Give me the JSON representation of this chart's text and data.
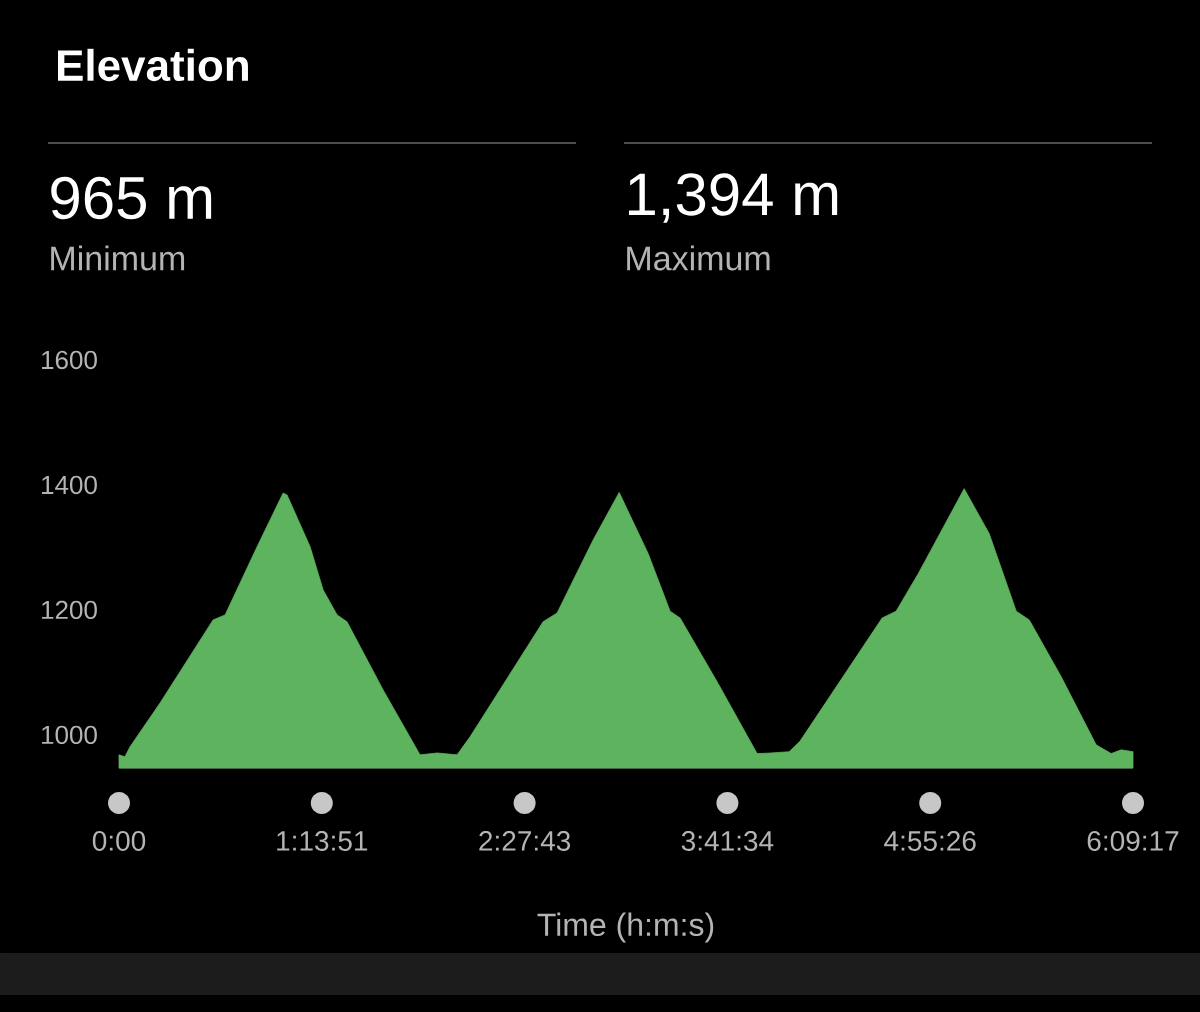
{
  "chart_data": {
    "type": "area",
    "title": "Elevation",
    "xlabel": "Time (h:m:s)",
    "annotations": [
      "965 m",
      "Minimum",
      "1,394 m",
      "Maximum"
    ],
    "x": [
      0,
      0.036,
      0.067,
      0.249,
      0.571,
      0.644,
      0.838,
      0.996,
      1.02,
      1.16,
      1.239,
      1.324,
      1.384,
      1.603,
      1.827,
      1.931,
      2.052,
      2.131,
      2.574,
      2.659,
      2.878,
      3.036,
      3.212,
      3.345,
      3.406,
      3.637,
      3.873,
      3.958,
      4.068,
      4.134,
      4.632,
      4.717,
      4.851,
      5.13,
      5.282,
      5.446,
      5.525,
      5.719,
      5.931,
      6.022,
      6.083,
      6.154722
    ],
    "values": [
      968,
      965,
      981,
      1051,
      1184,
      1192,
      1301,
      1387,
      1384,
      1301,
      1232,
      1192,
      1181,
      1072,
      968,
      971,
      968,
      997,
      1181,
      1195,
      1312,
      1388,
      1290,
      1198,
      1187,
      1082,
      970,
      971,
      973,
      990,
      1187,
      1198,
      1258,
      1394,
      1322,
      1198,
      1184,
      1093,
      984,
      970,
      976,
      973
    ],
    "color": "#5eb45e",
    "xlim": [
      0,
      6.154722
    ],
    "ylim": [
      947,
      1600
    ],
    "xticks": [
      {
        "value": 0,
        "label": "0:00"
      },
      {
        "value": 1.230833,
        "label": "1:13:51"
      },
      {
        "value": 2.461944,
        "label": "2:27:43"
      },
      {
        "value": 3.692778,
        "label": "3:41:34"
      },
      {
        "value": 4.923889,
        "label": "4:55:26"
      },
      {
        "value": 6.154722,
        "label": "6:09:17"
      }
    ],
    "yticks": [
      1000,
      1200,
      1400,
      1600
    ],
    "grid": false
  }
}
